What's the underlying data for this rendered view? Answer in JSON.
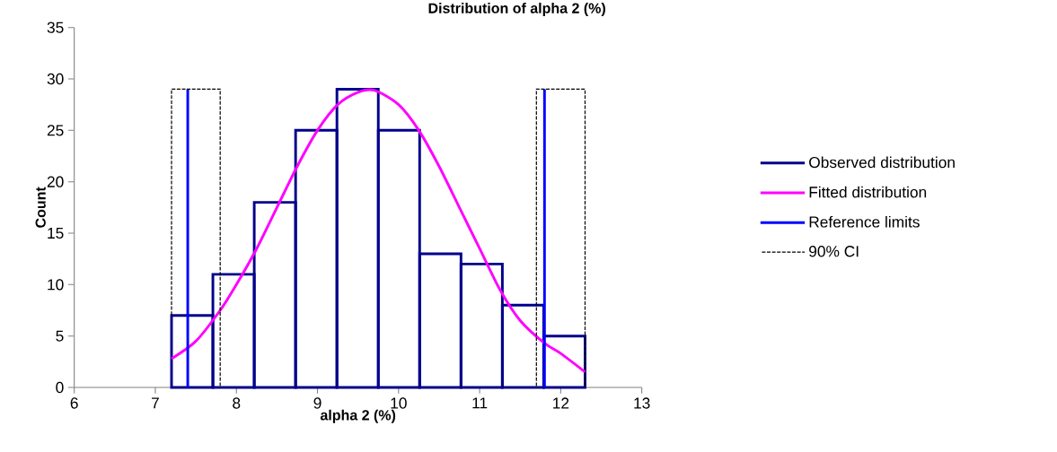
{
  "chart_data": {
    "type": "histogram",
    "title": "Distribution of alpha 2 (%)",
    "xlabel": "alpha 2 (%)",
    "ylabel": "Count",
    "xlim": [
      6,
      13
    ],
    "xticks": [
      6,
      7,
      8,
      9,
      10,
      11,
      12,
      13
    ],
    "ylim": [
      0,
      35
    ],
    "yticks": [
      0,
      5,
      10,
      15,
      20,
      25,
      30,
      35
    ],
    "series": [
      {
        "name": "Observed distribution",
        "color": "#00008b",
        "bins": [
          7.2,
          7.71,
          8.22,
          8.73,
          9.24,
          9.75,
          10.26,
          10.77,
          11.28,
          11.79,
          12.3
        ],
        "values": [
          7,
          11,
          18,
          25,
          29,
          25,
          13,
          12,
          8,
          5
        ]
      },
      {
        "type": "line",
        "name": "Fitted distribution",
        "color": "#ff00ff",
        "x": [
          7.2,
          7.5,
          7.8,
          8.0,
          8.25,
          8.5,
          8.75,
          9.0,
          9.25,
          9.5,
          9.7,
          10.0,
          10.25,
          10.5,
          10.75,
          11.0,
          11.25,
          11.5,
          11.8,
          12.0,
          12.3
        ],
        "values": [
          2.8,
          4.5,
          7.5,
          10,
          13.5,
          17.5,
          21.5,
          25,
          27.5,
          28.7,
          28.9,
          27.5,
          25,
          21.5,
          17.5,
          13.5,
          9.5,
          6.5,
          4.3,
          3.3,
          1.5
        ]
      },
      {
        "type": "line",
        "name": "Reference limits",
        "color": "#0000ff",
        "x": [
          7.4,
          7.4
        ],
        "values": [
          0,
          29
        ]
      },
      {
        "type": "line",
        "color": "#0000ff",
        "x": [
          11.8,
          11.8
        ],
        "values": [
          0,
          29
        ]
      },
      {
        "type": "line",
        "name": "90% CI",
        "color": "#000000",
        "line_style": "dashed",
        "x": [
          7.8,
          7.8,
          7.2,
          7.2
        ],
        "values": [
          0,
          29,
          29,
          7
        ]
      },
      {
        "type": "line",
        "color": "#000000",
        "line_style": "dashed",
        "x": [
          11.7,
          11.7,
          12.3,
          12.3
        ],
        "values": [
          0,
          29,
          29,
          0
        ]
      }
    ],
    "legend": "right"
  }
}
